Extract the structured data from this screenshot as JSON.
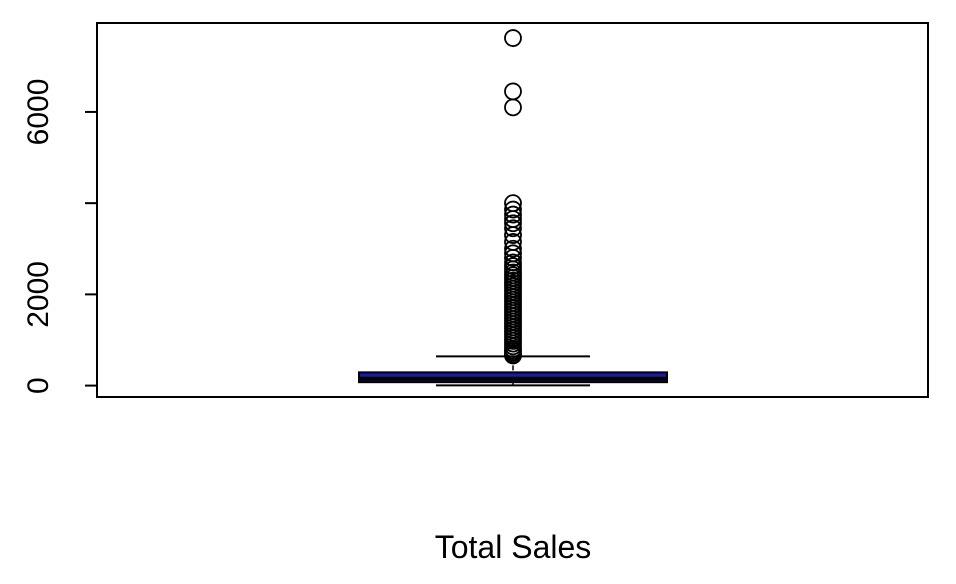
{
  "chart_data": {
    "type": "boxplot",
    "title": "",
    "xlabel": "Total Sales",
    "ylabel": "",
    "ylim": [
      -250,
      7950
    ],
    "yticks": [
      0,
      2000,
      4000,
      6000
    ],
    "ytick_labels": [
      "0",
      "2000",
      "",
      "6000"
    ],
    "grid": false,
    "legend": "none",
    "box": {
      "whisker_low": 5,
      "q1": 75,
      "median": 150,
      "q3": 290,
      "whisker_high": 640,
      "fill_color": "#1a1aa8",
      "median_color": "#000000"
    },
    "outliers": [
      7620,
      6450,
      6100,
      4000,
      3860,
      3750,
      3650,
      3560,
      3450,
      3300,
      3150,
      3000,
      2900,
      2800,
      2700,
      2620,
      2550,
      2480,
      2420,
      2360,
      2300,
      2240,
      2180,
      2120,
      2060,
      2000,
      1940,
      1880,
      1820,
      1760,
      1700,
      1640,
      1580,
      1520,
      1460,
      1400,
      1340,
      1280,
      1220,
      1160,
      1100,
      1040,
      980,
      920,
      860,
      800,
      760,
      720,
      680,
      660
    ]
  }
}
